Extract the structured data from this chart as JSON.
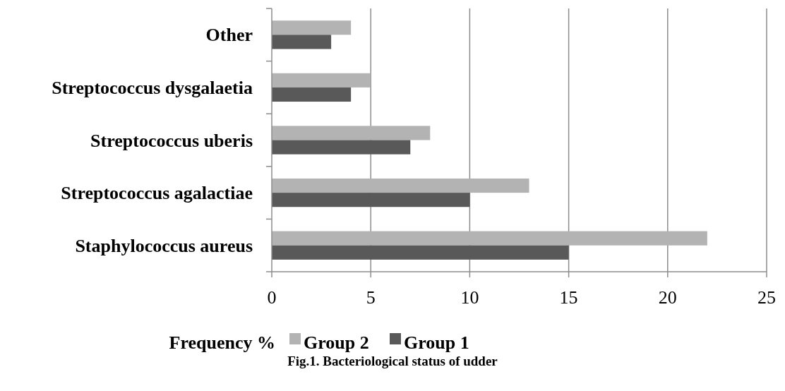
{
  "chart_data": {
    "type": "bar",
    "orientation": "horizontal",
    "categories": [
      "Other",
      "Streptococcus dysgalaetia",
      "Streptococcus uberis",
      "Streptococcus agalactiae",
      "Staphylococcus aureus"
    ],
    "series": [
      {
        "name": "Group 2",
        "color": "#b3b3b3",
        "values": [
          4,
          5,
          8,
          13,
          22
        ]
      },
      {
        "name": "Group 1",
        "color": "#595959",
        "values": [
          3,
          4,
          7,
          10,
          15
        ]
      }
    ],
    "xlim": [
      0,
      25
    ],
    "xticks": [
      0,
      5,
      10,
      15,
      20,
      25
    ],
    "grid": "x",
    "xlabel": "Frequency %",
    "legend": "bottom",
    "annotations": [
      "Fig.1. Bacteriological status of udder"
    ]
  }
}
